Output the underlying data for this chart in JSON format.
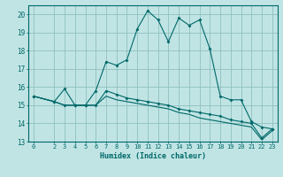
{
  "xlabel": "Humidex (Indice chaleur)",
  "ylabel": "",
  "bg_color": "#c0e4e4",
  "grid_color": "#90c0c0",
  "line_color": "#006868",
  "xlim": [
    -0.5,
    23.5
  ],
  "ylim": [
    13,
    20.5
  ],
  "xticks": [
    0,
    2,
    3,
    4,
    5,
    6,
    7,
    8,
    9,
    10,
    11,
    12,
    13,
    14,
    15,
    16,
    17,
    18,
    19,
    20,
    21,
    22,
    23
  ],
  "yticks": [
    13,
    14,
    15,
    16,
    17,
    18,
    19,
    20
  ],
  "series1_x": [
    0,
    2,
    3,
    4,
    5,
    6,
    7,
    8,
    9,
    10,
    11,
    12,
    13,
    14,
    15,
    16,
    17,
    18,
    19,
    20,
    21,
    22,
    23
  ],
  "series1_y": [
    15.5,
    15.2,
    15.9,
    15.0,
    15.0,
    15.8,
    17.4,
    17.2,
    17.5,
    19.2,
    20.2,
    19.7,
    18.5,
    19.8,
    19.4,
    19.7,
    18.1,
    15.5,
    15.3,
    15.3,
    14.1,
    13.8,
    13.7
  ],
  "series2_x": [
    0,
    2,
    3,
    4,
    5,
    6,
    7,
    8,
    9,
    10,
    11,
    12,
    13,
    14,
    15,
    16,
    17,
    18,
    19,
    20,
    21,
    22,
    23
  ],
  "series2_y": [
    15.5,
    15.2,
    15.0,
    15.0,
    15.0,
    15.0,
    15.8,
    15.6,
    15.4,
    15.3,
    15.2,
    15.1,
    15.0,
    14.8,
    14.7,
    14.6,
    14.5,
    14.4,
    14.2,
    14.1,
    14.0,
    13.2,
    13.7
  ],
  "series3_x": [
    0,
    2,
    3,
    4,
    5,
    6,
    7,
    8,
    9,
    10,
    11,
    12,
    13,
    14,
    15,
    16,
    17,
    18,
    19,
    20,
    21,
    22,
    23
  ],
  "series3_y": [
    15.5,
    15.2,
    15.0,
    15.0,
    15.0,
    15.0,
    15.5,
    15.3,
    15.2,
    15.1,
    15.0,
    14.9,
    14.8,
    14.6,
    14.5,
    14.3,
    14.2,
    14.1,
    14.0,
    13.9,
    13.8,
    13.1,
    13.6
  ],
  "xlabel_fontsize": 6,
  "tick_fontsize": 5,
  "ytick_fontsize": 5.5
}
